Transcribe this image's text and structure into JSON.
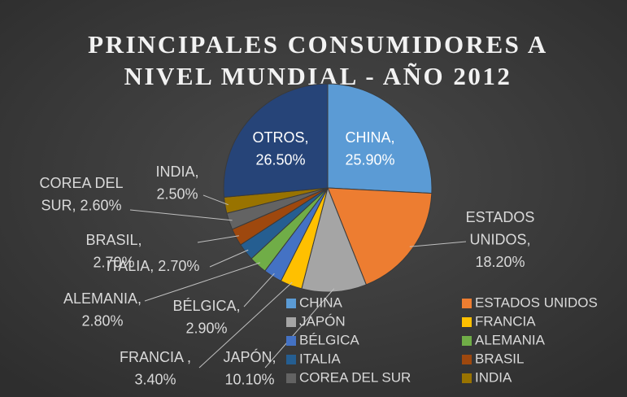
{
  "chart_data": {
    "type": "pie",
    "title": [
      "PRINCIPALES CONSUMIDORES A",
      "NIVEL MUNDIAL - AÑO 2012"
    ],
    "categories": [
      "CHINA",
      "ESTADOS UNIDOS",
      "JAPÓN",
      "FRANCIA",
      "BÉLGICA",
      "ALEMANIA",
      "ITALIA",
      "BRASIL",
      "COREA DEL SUR",
      "INDIA",
      "OTROS"
    ],
    "values": [
      25.9,
      18.2,
      10.1,
      3.4,
      2.9,
      2.8,
      2.7,
      2.7,
      2.6,
      2.5,
      26.5
    ],
    "value_labels": [
      [
        "CHINA,",
        "25.90%"
      ],
      [
        "ESTADOS",
        "UNIDOS,",
        "18.20%"
      ],
      [
        "JAPÓN,",
        "10.10%"
      ],
      [
        "FRANCIA ,",
        "3.40%"
      ],
      [
        "BÉLGICA,",
        "2.90%"
      ],
      [
        "ALEMANIA,",
        "2.80%"
      ],
      [
        "ITALIA, 2.70%"
      ],
      [
        "BRASIL,",
        "2.70%"
      ],
      [
        "COREA DEL",
        "SUR, 2.60%"
      ],
      [
        "INDIA,",
        "2.50%"
      ],
      [
        "OTROS,",
        "26.50%"
      ]
    ],
    "colors": [
      "#5b9bd5",
      "#ed7d31",
      "#a5a5a5",
      "#ffc000",
      "#4472c4",
      "#70ad47",
      "#255e91",
      "#9e480e",
      "#636363",
      "#997300",
      "#264478"
    ],
    "legend": "bottom-right"
  }
}
